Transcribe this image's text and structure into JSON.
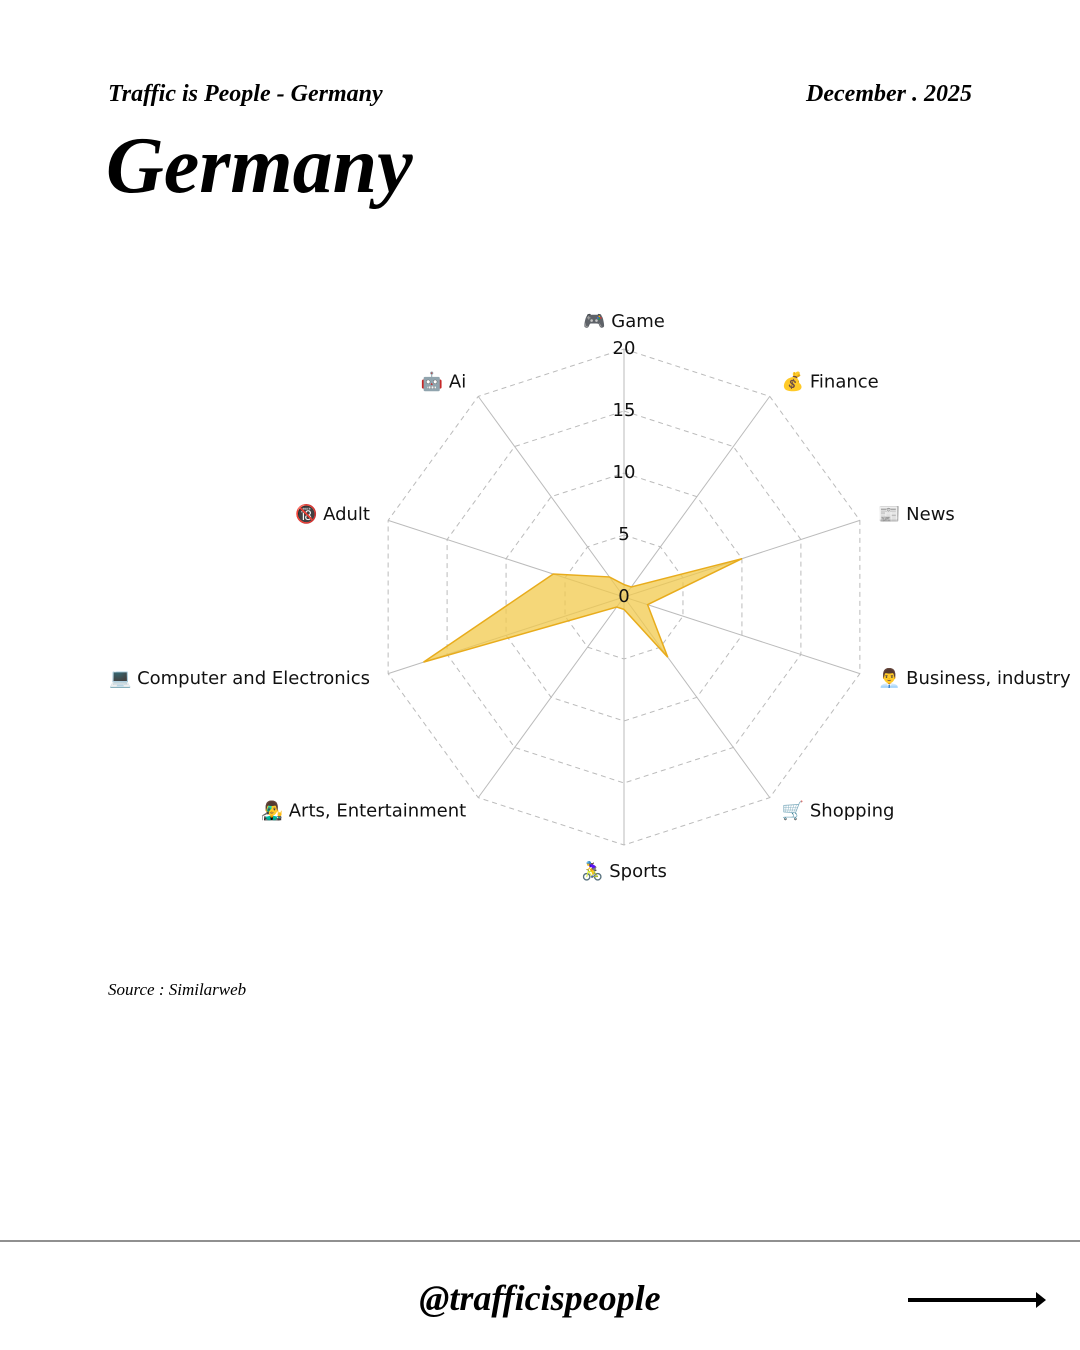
{
  "header": {
    "brand": "Traffic is People - Germany",
    "date": "December . 2025"
  },
  "chart_data": {
    "type": "radar",
    "title": "Germany",
    "categories": [
      "🎮 Game",
      "💰 Finance",
      "📰 News",
      "👨‍💼 Business, industry",
      "🛒 Shopping",
      "🚴‍♀️ Sports",
      "👨‍🎤 Arts, Entertainment",
      "💻 Computer and Electronics",
      "🔞 Adult",
      "🤖 Ai"
    ],
    "values": [
      1,
      1,
      10,
      2,
      6,
      1,
      1,
      17,
      6,
      2
    ],
    "rlim": [
      0,
      20
    ],
    "rticks": [
      0,
      5,
      10,
      15,
      20
    ],
    "color": "#f2c94c",
    "grid": true
  },
  "source": "Source : Similarweb",
  "footer": {
    "handle": "@trafficispeople"
  }
}
